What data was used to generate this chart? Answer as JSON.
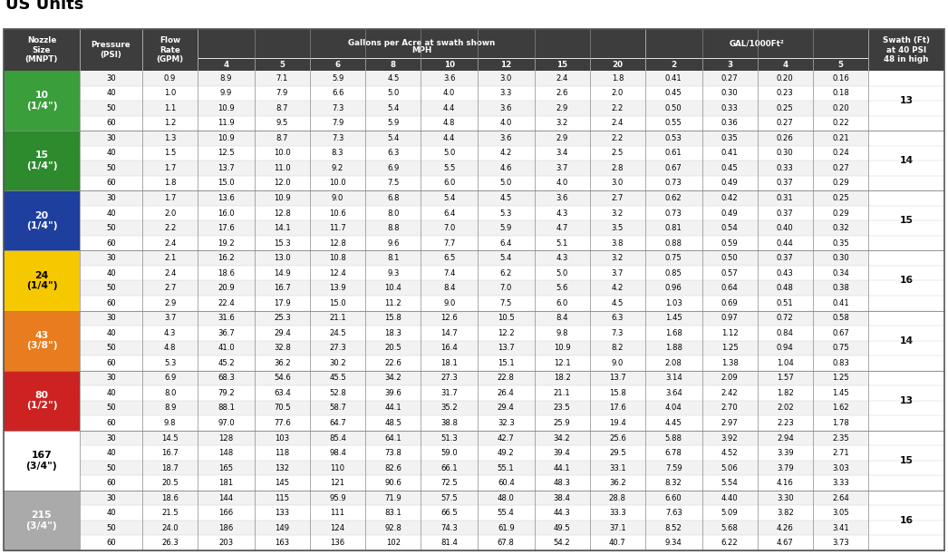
{
  "title": "US Units",
  "header_bg": "#3d3d3d",
  "nozzle_colors": {
    "10": "#3a9e3a",
    "15": "#2d8b2d",
    "20": "#1e3f9e",
    "24": "#f5c800",
    "43": "#e87c1e",
    "80": "#cc2222",
    "167": "#ffffff",
    "215": "#aaaaaa"
  },
  "nozzle_text_colors": {
    "10": "#ffffff",
    "15": "#ffffff",
    "20": "#ffffff",
    "24": "#000000",
    "43": "#ffffff",
    "80": "#ffffff",
    "167": "#000000",
    "215": "#ffffff"
  },
  "nozzle_labels": [
    "10\n(1/4\")",
    "15\n(1/4\")",
    "20\n(1/4\")",
    "24\n(1/4\")",
    "43\n(3/8\")",
    "80\n(1/2\")",
    "167\n(3/4\")",
    "215\n(3/4\")"
  ],
  "swath_ft": [
    13,
    14,
    15,
    16,
    14,
    13,
    15,
    16
  ],
  "rows": [
    {
      "nozzle": "10",
      "pressure": 30,
      "flow": "0.9",
      "mph": [
        "8.9",
        "7.1",
        "5.9",
        "4.5",
        "3.6",
        "3.0",
        "2.4",
        "1.8"
      ],
      "gal": [
        "0.41",
        "0.27",
        "0.20",
        "0.16"
      ]
    },
    {
      "nozzle": "10",
      "pressure": 40,
      "flow": "1.0",
      "mph": [
        "9.9",
        "7.9",
        "6.6",
        "5.0",
        "4.0",
        "3.3",
        "2.6",
        "2.0"
      ],
      "gal": [
        "0.45",
        "0.30",
        "0.23",
        "0.18"
      ]
    },
    {
      "nozzle": "10",
      "pressure": 50,
      "flow": "1.1",
      "mph": [
        "10.9",
        "8.7",
        "7.3",
        "5.4",
        "4.4",
        "3.6",
        "2.9",
        "2.2"
      ],
      "gal": [
        "0.50",
        "0.33",
        "0.25",
        "0.20"
      ]
    },
    {
      "nozzle": "10",
      "pressure": 60,
      "flow": "1.2",
      "mph": [
        "11.9",
        "9.5",
        "7.9",
        "5.9",
        "4.8",
        "4.0",
        "3.2",
        "2.4"
      ],
      "gal": [
        "0.55",
        "0.36",
        "0.27",
        "0.22"
      ]
    },
    {
      "nozzle": "15",
      "pressure": 30,
      "flow": "1.3",
      "mph": [
        "10.9",
        "8.7",
        "7.3",
        "5.4",
        "4.4",
        "3.6",
        "2.9",
        "2.2"
      ],
      "gal": [
        "0.53",
        "0.35",
        "0.26",
        "0.21"
      ]
    },
    {
      "nozzle": "15",
      "pressure": 40,
      "flow": "1.5",
      "mph": [
        "12.5",
        "10.0",
        "8.3",
        "6.3",
        "5.0",
        "4.2",
        "3.4",
        "2.5"
      ],
      "gal": [
        "0.61",
        "0.41",
        "0.30",
        "0.24"
      ]
    },
    {
      "nozzle": "15",
      "pressure": 50,
      "flow": "1.7",
      "mph": [
        "13.7",
        "11.0",
        "9.2",
        "6.9",
        "5.5",
        "4.6",
        "3.7",
        "2.8"
      ],
      "gal": [
        "0.67",
        "0.45",
        "0.33",
        "0.27"
      ]
    },
    {
      "nozzle": "15",
      "pressure": 60,
      "flow": "1.8",
      "mph": [
        "15.0",
        "12.0",
        "10.0",
        "7.5",
        "6.0",
        "5.0",
        "4.0",
        "3.0"
      ],
      "gal": [
        "0.73",
        "0.49",
        "0.37",
        "0.29"
      ]
    },
    {
      "nozzle": "20",
      "pressure": 30,
      "flow": "1.7",
      "mph": [
        "13.6",
        "10.9",
        "9.0",
        "6.8",
        "5.4",
        "4.5",
        "3.6",
        "2.7"
      ],
      "gal": [
        "0.62",
        "0.42",
        "0.31",
        "0.25"
      ]
    },
    {
      "nozzle": "20",
      "pressure": 40,
      "flow": "2.0",
      "mph": [
        "16.0",
        "12.8",
        "10.6",
        "8.0",
        "6.4",
        "5.3",
        "4.3",
        "3.2"
      ],
      "gal": [
        "0.73",
        "0.49",
        "0.37",
        "0.29"
      ]
    },
    {
      "nozzle": "20",
      "pressure": 50,
      "flow": "2.2",
      "mph": [
        "17.6",
        "14.1",
        "11.7",
        "8.8",
        "7.0",
        "5.9",
        "4.7",
        "3.5"
      ],
      "gal": [
        "0.81",
        "0.54",
        "0.40",
        "0.32"
      ]
    },
    {
      "nozzle": "20",
      "pressure": 60,
      "flow": "2.4",
      "mph": [
        "19.2",
        "15.3",
        "12.8",
        "9.6",
        "7.7",
        "6.4",
        "5.1",
        "3.8"
      ],
      "gal": [
        "0.88",
        "0.59",
        "0.44",
        "0.35"
      ]
    },
    {
      "nozzle": "24",
      "pressure": 30,
      "flow": "2.1",
      "mph": [
        "16.2",
        "13.0",
        "10.8",
        "8.1",
        "6.5",
        "5.4",
        "4.3",
        "3.2"
      ],
      "gal": [
        "0.75",
        "0.50",
        "0.37",
        "0.30"
      ]
    },
    {
      "nozzle": "24",
      "pressure": 40,
      "flow": "2.4",
      "mph": [
        "18.6",
        "14.9",
        "12.4",
        "9.3",
        "7.4",
        "6.2",
        "5.0",
        "3.7"
      ],
      "gal": [
        "0.85",
        "0.57",
        "0.43",
        "0.34"
      ]
    },
    {
      "nozzle": "24",
      "pressure": 50,
      "flow": "2.7",
      "mph": [
        "20.9",
        "16.7",
        "13.9",
        "10.4",
        "8.4",
        "7.0",
        "5.6",
        "4.2"
      ],
      "gal": [
        "0.96",
        "0.64",
        "0.48",
        "0.38"
      ]
    },
    {
      "nozzle": "24",
      "pressure": 60,
      "flow": "2.9",
      "mph": [
        "22.4",
        "17.9",
        "15.0",
        "11.2",
        "9.0",
        "7.5",
        "6.0",
        "4.5"
      ],
      "gal": [
        "1.03",
        "0.69",
        "0.51",
        "0.41"
      ]
    },
    {
      "nozzle": "43",
      "pressure": 30,
      "flow": "3.7",
      "mph": [
        "31.6",
        "25.3",
        "21.1",
        "15.8",
        "12.6",
        "10.5",
        "8.4",
        "6.3"
      ],
      "gal": [
        "1.45",
        "0.97",
        "0.72",
        "0.58"
      ]
    },
    {
      "nozzle": "43",
      "pressure": 40,
      "flow": "4.3",
      "mph": [
        "36.7",
        "29.4",
        "24.5",
        "18.3",
        "14.7",
        "12.2",
        "9.8",
        "7.3"
      ],
      "gal": [
        "1.68",
        "1.12",
        "0.84",
        "0.67"
      ]
    },
    {
      "nozzle": "43",
      "pressure": 50,
      "flow": "4.8",
      "mph": [
        "41.0",
        "32.8",
        "27.3",
        "20.5",
        "16.4",
        "13.7",
        "10.9",
        "8.2"
      ],
      "gal": [
        "1.88",
        "1.25",
        "0.94",
        "0.75"
      ]
    },
    {
      "nozzle": "43",
      "pressure": 60,
      "flow": "5.3",
      "mph": [
        "45.2",
        "36.2",
        "30.2",
        "22.6",
        "18.1",
        "15.1",
        "12.1",
        "9.0"
      ],
      "gal": [
        "2.08",
        "1.38",
        "1.04",
        "0.83"
      ]
    },
    {
      "nozzle": "80",
      "pressure": 30,
      "flow": "6.9",
      "mph": [
        "68.3",
        "54.6",
        "45.5",
        "34.2",
        "27.3",
        "22.8",
        "18.2",
        "13.7"
      ],
      "gal": [
        "3.14",
        "2.09",
        "1.57",
        "1.25"
      ]
    },
    {
      "nozzle": "80",
      "pressure": 40,
      "flow": "8.0",
      "mph": [
        "79.2",
        "63.4",
        "52.8",
        "39.6",
        "31.7",
        "26.4",
        "21.1",
        "15.8"
      ],
      "gal": [
        "3.64",
        "2.42",
        "1.82",
        "1.45"
      ]
    },
    {
      "nozzle": "80",
      "pressure": 50,
      "flow": "8.9",
      "mph": [
        "88.1",
        "70.5",
        "58.7",
        "44.1",
        "35.2",
        "29.4",
        "23.5",
        "17.6"
      ],
      "gal": [
        "4.04",
        "2.70",
        "2.02",
        "1.62"
      ]
    },
    {
      "nozzle": "80",
      "pressure": 60,
      "flow": "9.8",
      "mph": [
        "97.0",
        "77.6",
        "64.7",
        "48.5",
        "38.8",
        "32.3",
        "25.9",
        "19.4"
      ],
      "gal": [
        "4.45",
        "2.97",
        "2.23",
        "1.78"
      ]
    },
    {
      "nozzle": "167",
      "pressure": 30,
      "flow": "14.5",
      "mph": [
        "128",
        "103",
        "85.4",
        "64.1",
        "51.3",
        "42.7",
        "34.2",
        "25.6"
      ],
      "gal": [
        "5.88",
        "3.92",
        "2.94",
        "2.35"
      ]
    },
    {
      "nozzle": "167",
      "pressure": 40,
      "flow": "16.7",
      "mph": [
        "148",
        "118",
        "98.4",
        "73.8",
        "59.0",
        "49.2",
        "39.4",
        "29.5"
      ],
      "gal": [
        "6.78",
        "4.52",
        "3.39",
        "2.71"
      ]
    },
    {
      "nozzle": "167",
      "pressure": 50,
      "flow": "18.7",
      "mph": [
        "165",
        "132",
        "110",
        "82.6",
        "66.1",
        "55.1",
        "44.1",
        "33.1"
      ],
      "gal": [
        "7.59",
        "5.06",
        "3.79",
        "3.03"
      ]
    },
    {
      "nozzle": "167",
      "pressure": 60,
      "flow": "20.5",
      "mph": [
        "181",
        "145",
        "121",
        "90.6",
        "72.5",
        "60.4",
        "48.3",
        "36.2"
      ],
      "gal": [
        "8.32",
        "5.54",
        "4.16",
        "3.33"
      ]
    },
    {
      "nozzle": "215",
      "pressure": 30,
      "flow": "18.6",
      "mph": [
        "144",
        "115",
        "95.9",
        "71.9",
        "57.5",
        "48.0",
        "38.4",
        "28.8"
      ],
      "gal": [
        "6.60",
        "4.40",
        "3.30",
        "2.64"
      ]
    },
    {
      "nozzle": "215",
      "pressure": 40,
      "flow": "21.5",
      "mph": [
        "166",
        "133",
        "111",
        "83.1",
        "66.5",
        "55.4",
        "44.3",
        "33.3"
      ],
      "gal": [
        "7.63",
        "5.09",
        "3.82",
        "3.05"
      ]
    },
    {
      "nozzle": "215",
      "pressure": 50,
      "flow": "24.0",
      "mph": [
        "186",
        "149",
        "124",
        "92.8",
        "74.3",
        "61.9",
        "49.5",
        "37.1"
      ],
      "gal": [
        "8.52",
        "5.68",
        "4.26",
        "3.41"
      ]
    },
    {
      "nozzle": "215",
      "pressure": 60,
      "flow": "26.3",
      "mph": [
        "203",
        "163",
        "136",
        "102",
        "81.4",
        "67.8",
        "54.2",
        "40.7"
      ],
      "gal": [
        "9.34",
        "6.22",
        "4.67",
        "3.73"
      ]
    }
  ]
}
